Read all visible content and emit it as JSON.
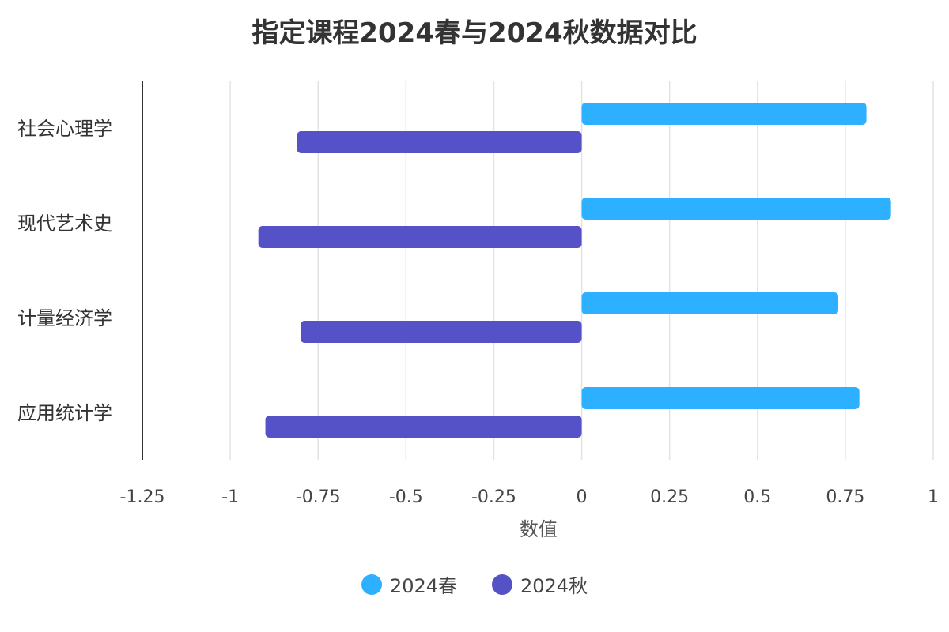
{
  "chart_data": {
    "type": "bar",
    "orientation": "horizontal",
    "title": "指定课程2024春与2024秋数据对比",
    "xlabel": "数值",
    "ylabel": "",
    "categories": [
      "社会心理学",
      "现代艺术史",
      "计量经济学",
      "应用统计学"
    ],
    "series": [
      {
        "name": "2024春",
        "color": "#2db0ff",
        "values": [
          0.81,
          0.88,
          0.73,
          0.79
        ]
      },
      {
        "name": "2024秋",
        "color": "#5551c6",
        "values": [
          -0.81,
          -0.92,
          -0.8,
          -0.9
        ]
      }
    ],
    "xlim": [
      -1.25,
      1
    ],
    "xticks": [
      -1.25,
      -1,
      -0.75,
      -0.5,
      -0.25,
      0,
      0.25,
      0.5,
      0.75,
      1
    ],
    "xtick_labels": [
      "-1.25",
      "-1",
      "-0.75",
      "-0.5",
      "-0.25",
      "0",
      "0.25",
      "0.5",
      "0.75",
      "1"
    ],
    "grid": true,
    "legend_position": "bottom"
  }
}
